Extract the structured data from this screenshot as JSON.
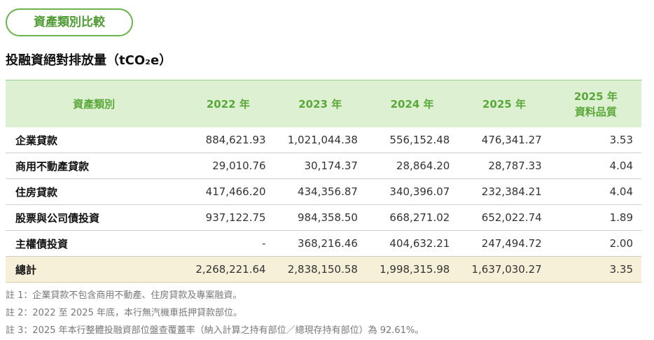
{
  "badge": "資產類別比較",
  "subtitle": "投融資絕對排放量（tCO₂e）",
  "table": {
    "header": [
      "資產類別",
      "2022 年",
      "2023 年",
      "2024 年",
      "2025 年",
      "2025 年\n資料品質"
    ],
    "rows": [
      [
        "企業貸款",
        "884,621.93",
        "1,021,044.38",
        "556,152.48",
        "476,341.27",
        "3.53"
      ],
      [
        "商用不動產貸款",
        "29,010.76",
        "30,174.37",
        "28,864.20",
        "28,787.33",
        "4.04"
      ],
      [
        "住房貸款",
        "417,466.20",
        "434,356.87",
        "340,396.07",
        "232,384.21",
        "4.04"
      ],
      [
        "股票與公司債投資",
        "937,122.75",
        "984,358.50",
        "668,271.02",
        "652,022.74",
        "1.89"
      ],
      [
        "主權債投資",
        "-",
        "368,216.46",
        "404,632.21",
        "247,494.72",
        "2.00"
      ]
    ],
    "total": [
      "總計",
      "2,268,221.64",
      "2,838,150.58",
      "1,998,315.98",
      "1,637,030.27",
      "3.35"
    ]
  },
  "notes": [
    "註 1：企業貸款不包含商用不動產、住房貸款及專案融資。",
    "註 2：2022 至 2025 年底，本行無汽機車抵押貸款部位。",
    "註 3：2025 年本行整體投融資部位盤查覆蓋率（納入計算之持有部位／總現存持有部位）為 92.61%。"
  ]
}
